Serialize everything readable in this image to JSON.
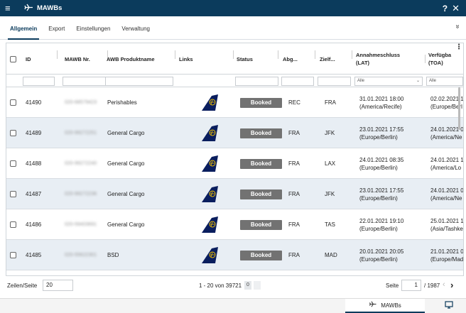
{
  "app": {
    "title": "MAWBs",
    "help": "?",
    "close": "✕",
    "menu": "≡",
    "icon": "airplane-icon"
  },
  "tabs": [
    {
      "label": "Allgemein",
      "active": true
    },
    {
      "label": "Export",
      "active": false
    },
    {
      "label": "Einstellungen",
      "active": false
    },
    {
      "label": "Verwaltung",
      "active": false
    }
  ],
  "expand_glyph": "»",
  "columns": {
    "id": "ID",
    "mawb": "MAWB Nr.",
    "product": "AWB Produktname",
    "links": "Links",
    "status": "Status",
    "abg": "Abg...",
    "ziel": "Zielf...",
    "annahme": [
      "Annahmeschluss",
      "(LAT)"
    ],
    "verf": [
      "Verfügba",
      "(TOA)"
    ]
  },
  "filters": {
    "annahme": "Alle",
    "verf": "Alle"
  },
  "rows": [
    {
      "id": "41490",
      "mawb": "020-68579423",
      "product": "Perishables",
      "status": "Booked",
      "abg": "REC",
      "ziel": "FRA",
      "lat": [
        "31.01.2021 18:00",
        "(America/Recife)"
      ],
      "toa": [
        "02.02.2021 1",
        "(Europe/Berl"
      ],
      "alt": false
    },
    {
      "id": "41489",
      "mawb": "020-99272251",
      "product": "General Cargo",
      "status": "Booked",
      "abg": "FRA",
      "ziel": "JFK",
      "lat": [
        "23.01.2021 17:55",
        "(Europe/Berlin)"
      ],
      "toa": [
        "24.01.2021 0",
        "(America/Ne"
      ],
      "alt": true
    },
    {
      "id": "41488",
      "mawb": "020-99272240",
      "product": "General Cargo",
      "status": "Booked",
      "abg": "FRA",
      "ziel": "LAX",
      "lat": [
        "24.01.2021 08:35",
        "(Europe/Berlin)"
      ],
      "toa": [
        "24.01.2021 1",
        "(America/Lo"
      ],
      "alt": false
    },
    {
      "id": "41487",
      "mawb": "020-99272236",
      "product": "General Cargo",
      "status": "Booked",
      "abg": "FRA",
      "ziel": "JFK",
      "lat": [
        "23.01.2021 17:55",
        "(Europe/Berlin)"
      ],
      "toa": [
        "24.01.2021 0",
        "(America/Ne"
      ],
      "alt": true
    },
    {
      "id": "41486",
      "mawb": "020-59403691",
      "product": "General Cargo",
      "status": "Booked",
      "abg": "FRA",
      "ziel": "TAS",
      "lat": [
        "22.01.2021 19:10",
        "(Europe/Berlin)"
      ],
      "toa": [
        "25.01.2021 1",
        "(Asia/Tashke"
      ],
      "alt": false
    },
    {
      "id": "41485",
      "mawb": "020-55622301",
      "product": "BSD",
      "status": "Booked",
      "abg": "FRA",
      "ziel": "MAD",
      "lat": [
        "20.01.2021 20:05",
        "(Europe/Berlin)"
      ],
      "toa": [
        "21.01.2021 0",
        "(Europe/Mad"
      ],
      "alt": true
    }
  ],
  "footer": {
    "page_size_label": "Zeilen/Seite",
    "page_size": "20",
    "range": "1 - 20 von 39721",
    "count_badge": "0",
    "page_label": "Seite",
    "page": "1",
    "total_pages": "/ 1987"
  },
  "taskbar": {
    "task_label": "MAWBs"
  },
  "colors": {
    "header_bg": "#0b3b5c",
    "status_badge": "#727272",
    "alt_row": "#e8eef4"
  }
}
